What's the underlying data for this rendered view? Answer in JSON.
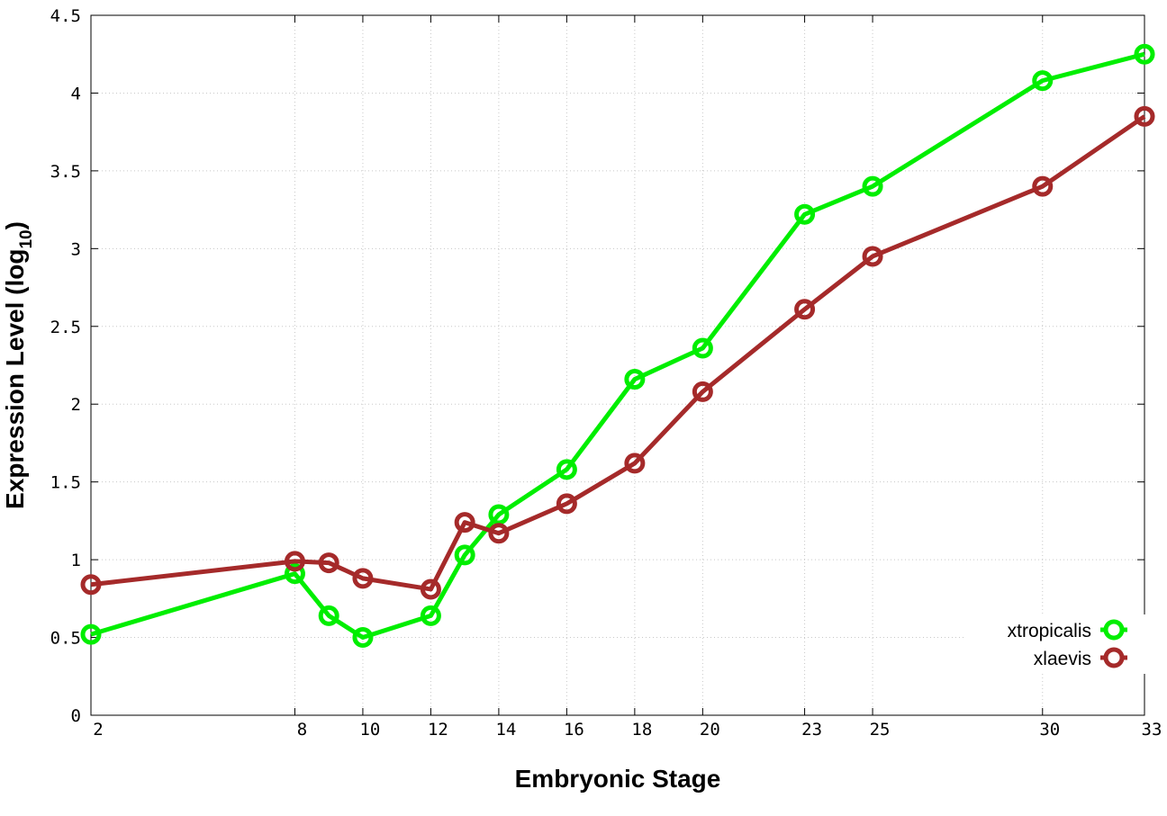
{
  "chart_data": {
    "type": "line",
    "xlabel": "Embryonic Stage",
    "ylabel_main": "Expression Level (log",
    "ylabel_sub": "10",
    "ylabel_close": ")",
    "xlim": [
      2,
      33
    ],
    "ylim": [
      0,
      4.5
    ],
    "x_ticks": [
      2,
      8,
      10,
      12,
      14,
      16,
      18,
      20,
      23,
      25,
      30,
      33
    ],
    "y_ticks": [
      0,
      0.5,
      1,
      1.5,
      2,
      2.5,
      3,
      3.5,
      4,
      4.5
    ],
    "x_tick_labels": [
      "2",
      "8",
      "10",
      "12",
      "14",
      "16",
      "18",
      "20",
      "23",
      "25",
      "30",
      "33"
    ],
    "y_tick_labels": [
      "0",
      "0.5",
      "1",
      "1.5",
      "2",
      "2.5",
      "3",
      "3.5",
      "4",
      "4.5"
    ],
    "grid": true,
    "legend_position": "bottom-right",
    "x": [
      2,
      8,
      9,
      10,
      12,
      13,
      14,
      16,
      18,
      20,
      23,
      25,
      30,
      33
    ],
    "series": [
      {
        "name": "xtropicalis",
        "color": "#00ee00",
        "values": [
          0.52,
          0.91,
          0.64,
          0.5,
          0.64,
          1.03,
          1.29,
          1.58,
          2.16,
          2.36,
          3.22,
          3.4,
          4.08,
          4.25
        ]
      },
      {
        "name": "xlaevis",
        "color": "#a52a2a",
        "values": [
          0.84,
          0.99,
          0.98,
          0.88,
          0.81,
          1.24,
          1.17,
          1.36,
          1.62,
          2.08,
          2.61,
          2.95,
          3.4,
          3.85
        ]
      }
    ]
  }
}
